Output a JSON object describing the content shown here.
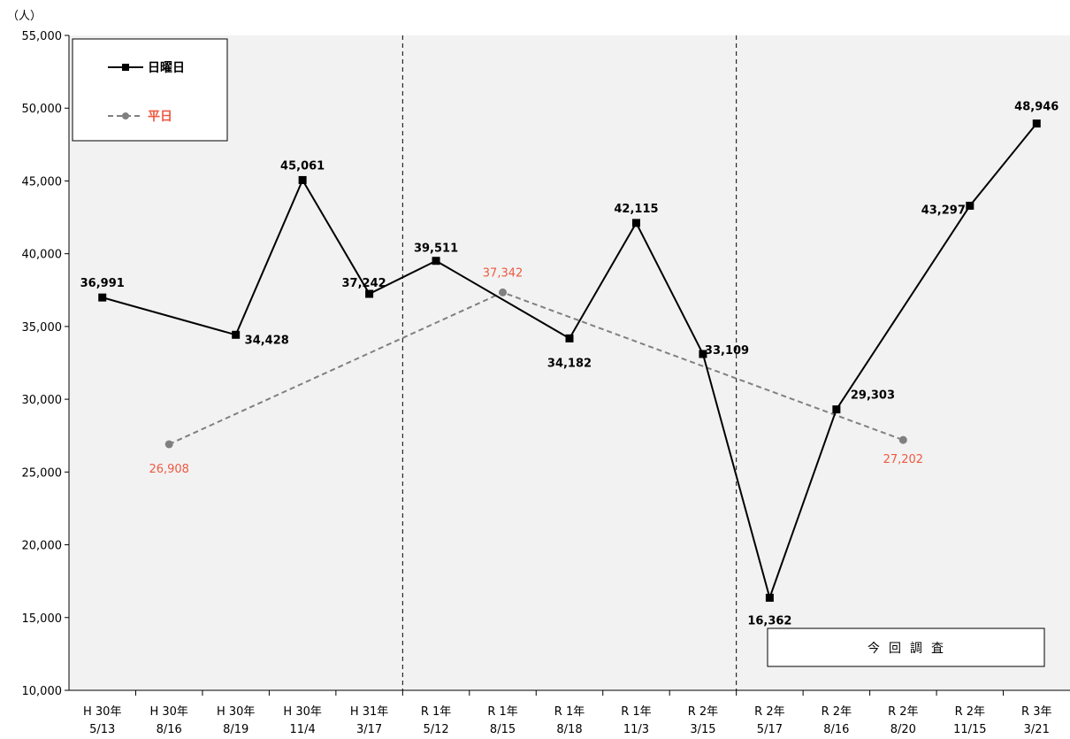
{
  "chart_data": {
    "type": "line",
    "ylabel": "（人）",
    "ylim": [
      10000,
      55000
    ],
    "yticks": [
      10000,
      15000,
      20000,
      25000,
      30000,
      35000,
      40000,
      45000,
      50000,
      55000
    ],
    "ytick_labels": [
      "10,000",
      "15,000",
      "20,000",
      "25,000",
      "30,000",
      "35,000",
      "40,000",
      "45,000",
      "50,000",
      "55,000"
    ],
    "categories": [
      {
        "line1": "H 30年",
        "line2": "5/13"
      },
      {
        "line1": "H 30年",
        "line2": "8/16"
      },
      {
        "line1": "H 30年",
        "line2": "8/19"
      },
      {
        "line1": "H 30年",
        "line2": "11/4"
      },
      {
        "line1": "H 31年",
        "line2": "3/17"
      },
      {
        "line1": "R 1年",
        "line2": "5/12"
      },
      {
        "line1": "R 1年",
        "line2": "8/15"
      },
      {
        "line1": "R 1年",
        "line2": "8/18"
      },
      {
        "line1": "R 1年",
        "line2": "11/3"
      },
      {
        "line1": "R 2年",
        "line2": "3/15"
      },
      {
        "line1": "R 2年",
        "line2": "5/17"
      },
      {
        "line1": "R 2年",
        "line2": "8/16"
      },
      {
        "line1": "R 2年",
        "line2": "8/20"
      },
      {
        "line1": "R 2年",
        "line2": "11/15"
      },
      {
        "line1": "R 3年",
        "line2": "3/21"
      }
    ],
    "series": [
      {
        "name": "日曜日",
        "color": "#000000",
        "marker": "square",
        "style": "solid",
        "points": [
          {
            "i": 0,
            "y": 36991,
            "label": "36,991"
          },
          {
            "i": 2,
            "y": 34428,
            "label": "34,428"
          },
          {
            "i": 3,
            "y": 45061,
            "label": "45,061"
          },
          {
            "i": 4,
            "y": 37242,
            "label": "37,242"
          },
          {
            "i": 5,
            "y": 39511,
            "label": "39,511"
          },
          {
            "i": 7,
            "y": 34182,
            "label": "34,182"
          },
          {
            "i": 8,
            "y": 42115,
            "label": "42,115"
          },
          {
            "i": 9,
            "y": 33109,
            "label": "33,109"
          },
          {
            "i": 10,
            "y": 16362,
            "label": "16,362"
          },
          {
            "i": 11,
            "y": 29303,
            "label": "29,303"
          },
          {
            "i": 13,
            "y": 43297,
            "label": "43,297"
          },
          {
            "i": 14,
            "y": 48946,
            "label": "48,946"
          }
        ]
      },
      {
        "name": "平日",
        "color": "#808080",
        "label_color": "#ee5a43",
        "marker": "circle",
        "style": "dashed",
        "points": [
          {
            "i": 1,
            "y": 26908,
            "label": "26,908"
          },
          {
            "i": 6,
            "y": 37342,
            "label": "37,342"
          },
          {
            "i": 12,
            "y": 27202,
            "label": "27,202"
          }
        ]
      }
    ],
    "annotation": "今回調査",
    "plot_background": "#f2f2f2",
    "legend_position": "top-left",
    "grid": false
  }
}
